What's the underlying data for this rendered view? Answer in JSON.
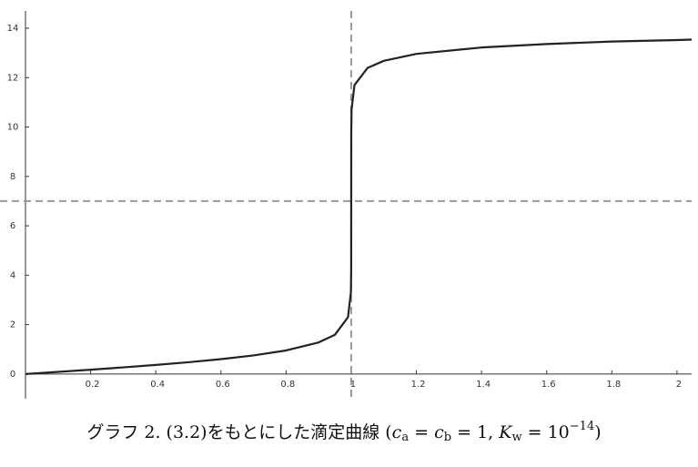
{
  "chart_data": {
    "type": "line",
    "x": [
      0,
      0.1,
      0.2,
      0.3,
      0.4,
      0.5,
      0.6,
      0.7,
      0.8,
      0.9,
      0.95,
      0.99,
      0.999,
      0.9999,
      1,
      1.0001,
      1.001,
      1.01,
      1.05,
      1.1,
      1.2,
      1.4,
      1.6,
      1.8,
      2.0,
      2.045
    ],
    "series": [
      {
        "color": "#222222",
        "values": [
          0,
          0.087,
          0.176,
          0.269,
          0.368,
          0.477,
          0.602,
          0.753,
          0.954,
          1.279,
          1.591,
          2.299,
          3.301,
          4.3,
          7,
          9.7,
          10.7,
          11.7,
          12.39,
          12.68,
          12.96,
          13.22,
          13.36,
          13.46,
          13.52,
          13.54
        ]
      }
    ],
    "xlim": [
      0,
      2.045
    ],
    "ylim": [
      -1,
      14.7
    ],
    "xticks": [
      0.2,
      0.4,
      0.6,
      0.8,
      1,
      1.2,
      1.4,
      1.6,
      1.8,
      2
    ],
    "yticks": [
      0,
      2,
      4,
      6,
      8,
      10,
      12,
      14
    ],
    "vlines": [
      1
    ],
    "hlines": [
      7
    ],
    "reference_color": "#999999",
    "caption": [
      "グラフ 2. (3.2)をもとにした滴定曲線 (",
      "c",
      "a",
      " = ",
      "c",
      "b",
      " = 1, ",
      "K",
      "w",
      " = 10",
      "−14",
      ")"
    ]
  }
}
